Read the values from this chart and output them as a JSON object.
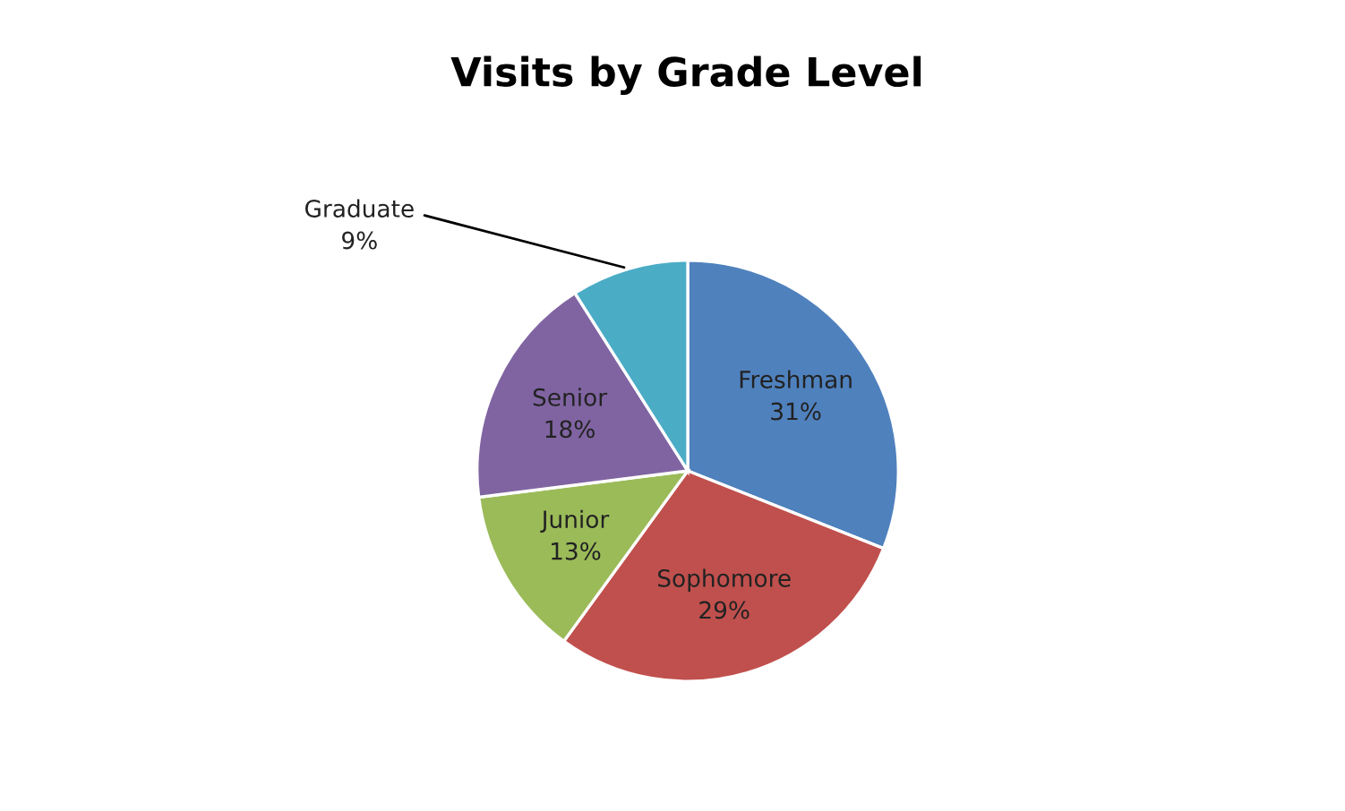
{
  "chart_data": {
    "type": "pie",
    "title": "Visits by Grade Level",
    "categories": [
      "Freshman",
      "Sophomore",
      "Junior",
      "Senior",
      "Graduate"
    ],
    "values": [
      31,
      29,
      13,
      18,
      9
    ],
    "colors": [
      "#4f81bd",
      "#c0504d",
      "#9bbb59",
      "#8064a2",
      "#4bacc6"
    ],
    "value_labels": [
      "31%",
      "29%",
      "13%",
      "18%",
      "9%"
    ],
    "legend": false
  }
}
